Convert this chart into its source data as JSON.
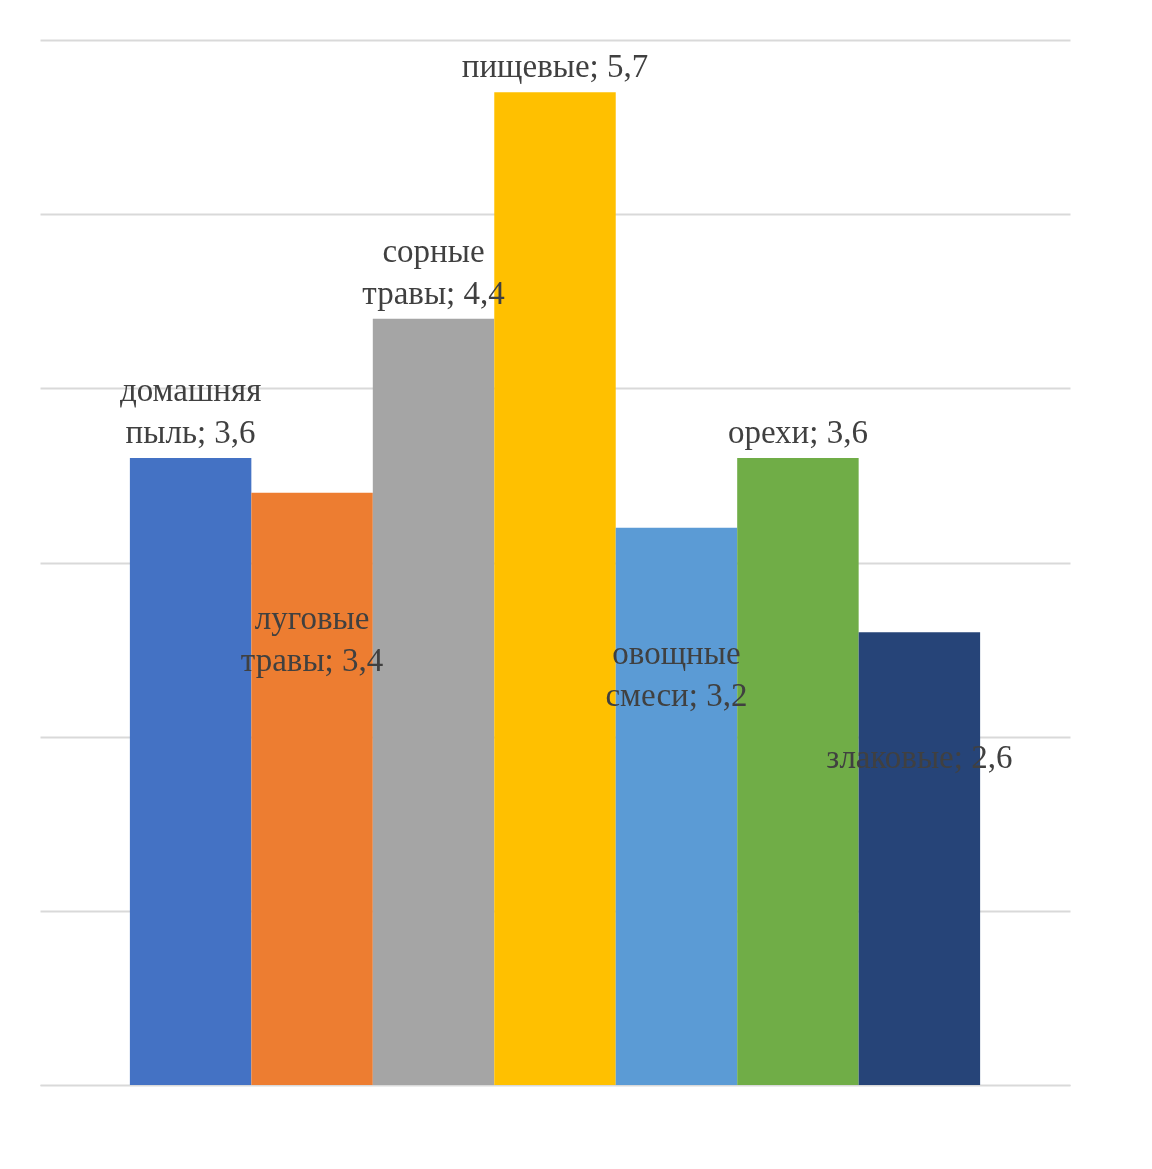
{
  "chart_data": {
    "type": "bar",
    "categories": [
      null,
      null,
      null,
      null,
      null,
      null,
      null
    ],
    "values": [
      3.6,
      3.4,
      4.4,
      5.7,
      3.2,
      3.6,
      2.6
    ],
    "colors": [
      "#4472c4",
      "#ed7d31",
      "#a5a5a5",
      "#ffc000",
      "#5b9bd5",
      "#70ad47",
      "#264478"
    ],
    "value_labels": [
      "домашняя\nпыль; 3,6",
      "луговые\nтравы; 3,4",
      "сорные\nтравы; 4,4",
      "пищевые; 5,7",
      "овощные\nсмеси; 3,2",
      "орехи; 3,6",
      "злаковые; 2,6"
    ],
    "ylim": [
      0,
      6
    ],
    "yticks": [
      {
        "value": 0,
        "label": null
      },
      {
        "value": 1,
        "label": null
      },
      {
        "value": 2,
        "label": null
      },
      {
        "value": 3,
        "label": null
      },
      {
        "value": 4,
        "label": null
      },
      {
        "value": 5,
        "label": null
      },
      {
        "value": 6,
        "label": null
      }
    ],
    "grid": "y",
    "tick_labels": false
  }
}
